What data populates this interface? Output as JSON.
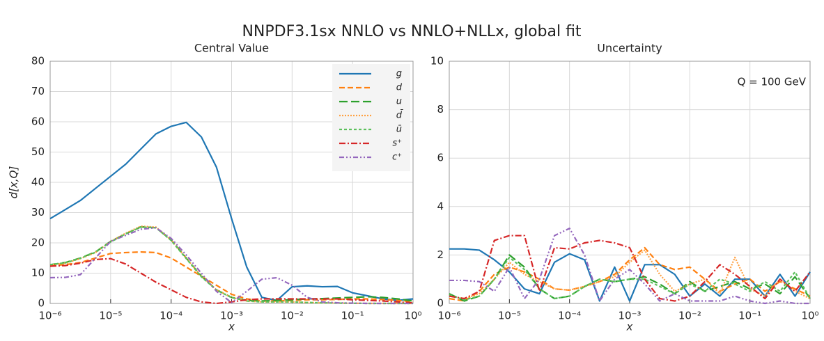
{
  "suptitle": "NNPDF3.1sx NNLO vs NNLO+NLLx, global fit",
  "chart_data": [
    {
      "type": "line",
      "title": "Central Value",
      "xlabel": "x",
      "ylabel": "d[x,Q]",
      "xscale": "log",
      "grid": true,
      "legend": "upper right",
      "x": [
        1e-06,
        1.78e-06,
        3.16e-06,
        5.62e-06,
        1e-05,
        1.78e-05,
        3.16e-05,
        5.62e-05,
        0.0001,
        0.000178,
        0.000316,
        0.000562,
        0.001,
        0.00178,
        0.00316,
        0.00562,
        0.01,
        0.0178,
        0.0316,
        0.0562,
        0.1,
        0.178,
        0.316,
        0.562,
        1
      ],
      "xlim": [
        1e-06,
        1
      ],
      "xticks": [
        {
          "value": 1e-06,
          "label": "10⁻⁶"
        },
        {
          "value": 1e-05,
          "label": "10⁻⁵"
        },
        {
          "value": 0.0001,
          "label": "10⁻⁴"
        },
        {
          "value": 0.001,
          "label": "10⁻³"
        },
        {
          "value": 0.01,
          "label": "10⁻²"
        },
        {
          "value": 0.1,
          "label": "10⁻¹"
        },
        {
          "value": 1,
          "label": "10⁰"
        }
      ],
      "ylim": [
        0,
        80
      ],
      "yticks": [
        0,
        10,
        20,
        30,
        40,
        50,
        60,
        70,
        80
      ],
      "series": [
        {
          "name": "g",
          "color": "#1f77b4",
          "linestyle": "solid",
          "values": [
            28,
            31,
            34,
            38,
            42,
            46,
            51,
            56,
            58.5,
            59.8,
            55,
            45,
            28,
            12,
            2,
            1,
            5.5,
            5.8,
            5.5,
            5.6,
            3.5,
            2.5,
            1.5,
            1,
            1.5
          ]
        },
        {
          "name": "d",
          "color": "#ff7f0e",
          "linestyle": "dashed",
          "values": [
            12.5,
            12.8,
            13.5,
            15,
            16.5,
            16.8,
            17,
            16.8,
            15,
            12,
            9,
            6,
            3,
            1.5,
            0.8,
            0.8,
            1,
            1.2,
            1.2,
            1.3,
            1.5,
            1.5,
            1.3,
            1,
            0.5
          ]
        },
        {
          "name": "u",
          "color": "#2ca02c",
          "linestyle": "longdash",
          "values": [
            12.8,
            13.5,
            15,
            17,
            20.5,
            23,
            25.3,
            25,
            21,
            15,
            9,
            4.5,
            2,
            1,
            0.8,
            1,
            1.2,
            1.5,
            1.6,
            1.8,
            2,
            2.2,
            2,
            1.5,
            0.8
          ]
        },
        {
          "name": "d̄",
          "color": "#ffa040",
          "linestyle": "dotted",
          "values": [
            12.7,
            13.3,
            14.8,
            16.8,
            20.5,
            23.2,
            25.5,
            25.2,
            21,
            15,
            9,
            4.5,
            2,
            0.8,
            0.5,
            0.5,
            0.5,
            0.3,
            0.2,
            0.1,
            0.05,
            0,
            0,
            0,
            0
          ]
        },
        {
          "name": "ū",
          "color": "#5cc05c",
          "linestyle": "shortdash",
          "values": [
            12.8,
            13.4,
            14.9,
            16.9,
            20.3,
            23,
            25.2,
            25,
            20.8,
            14.8,
            8.8,
            4.4,
            1.9,
            0.8,
            0.5,
            0.5,
            0.5,
            0.3,
            0.2,
            0.1,
            0.05,
            0,
            0,
            0,
            0
          ]
        },
        {
          "name": "s⁺",
          "color": "#d62728",
          "linestyle": "dashdot",
          "values": [
            12.3,
            12.5,
            13.3,
            14.5,
            14.8,
            13,
            10,
            7,
            4.5,
            2,
            0.5,
            0,
            0.5,
            1.2,
            1.5,
            1.5,
            1.5,
            1.5,
            1.5,
            1.5,
            1.2,
            1,
            0.8,
            0.5,
            0.2
          ]
        },
        {
          "name": "c⁺",
          "color": "#9467bd",
          "linestyle": "dashdotdot",
          "values": [
            8.5,
            8.6,
            9.5,
            15,
            20.5,
            22.5,
            24.5,
            25,
            21.5,
            16,
            10,
            4,
            0.3,
            4,
            8,
            8.5,
            6,
            2,
            0.5,
            0.2,
            0.1,
            0,
            0,
            0,
            0
          ]
        }
      ]
    },
    {
      "type": "line",
      "title": "Uncertainty",
      "xlabel": "x",
      "xscale": "log",
      "grid": true,
      "annotation": "Q = 100 GeV",
      "x": [
        1e-06,
        1.78e-06,
        3.16e-06,
        5.62e-06,
        1e-05,
        1.78e-05,
        3.16e-05,
        5.62e-05,
        0.0001,
        0.000178,
        0.000316,
        0.000562,
        0.001,
        0.00178,
        0.00316,
        0.00562,
        0.01,
        0.0178,
        0.0316,
        0.0562,
        0.1,
        0.178,
        0.316,
        0.562,
        1
      ],
      "xlim": [
        1e-06,
        1
      ],
      "xticks": [
        {
          "value": 1e-06,
          "label": "10⁻⁶"
        },
        {
          "value": 1e-05,
          "label": "10⁻⁵"
        },
        {
          "value": 0.0001,
          "label": "10⁻⁴"
        },
        {
          "value": 0.001,
          "label": "10⁻³"
        },
        {
          "value": 0.01,
          "label": "10⁻²"
        },
        {
          "value": 0.1,
          "label": "10⁻¹"
        },
        {
          "value": 1,
          "label": "10⁰"
        }
      ],
      "ylim": [
        0,
        10
      ],
      "yticks": [
        0,
        2,
        4,
        6,
        8,
        10
      ],
      "series": [
        {
          "name": "g",
          "color": "#1f77b4",
          "linestyle": "solid",
          "values": [
            2.25,
            2.25,
            2.2,
            1.8,
            1.3,
            0.6,
            0.4,
            1.7,
            2.05,
            1.8,
            0.1,
            1.5,
            0.1,
            1.6,
            1.6,
            1.2,
            0.3,
            0.8,
            0.3,
            1.0,
            1.0,
            0.3,
            1.2,
            0.3,
            1.3
          ]
        },
        {
          "name": "d",
          "color": "#ff7f0e",
          "linestyle": "dashed",
          "values": [
            0.2,
            0.1,
            0.5,
            1.2,
            1.5,
            1.3,
            1.0,
            0.6,
            0.55,
            0.7,
            0.9,
            1.2,
            1.8,
            2.3,
            1.6,
            1.4,
            1.5,
            1.0,
            0.5,
            0.8,
            1.0,
            0.5,
            0.9,
            0.6,
            0.3
          ]
        },
        {
          "name": "u",
          "color": "#2ca02c",
          "linestyle": "longdash",
          "values": [
            0.4,
            0.1,
            0.3,
            1.0,
            2.0,
            1.5,
            0.6,
            0.2,
            0.3,
            0.7,
            1.0,
            0.9,
            1.0,
            1.1,
            0.8,
            0.4,
            0.9,
            0.5,
            0.7,
            0.9,
            0.6,
            0.8,
            0.4,
            1.1,
            0.2
          ]
        },
        {
          "name": "d̄",
          "color": "#ffa040",
          "linestyle": "dotted",
          "values": [
            0.3,
            0.2,
            0.4,
            1.0,
            1.7,
            1.2,
            0.9,
            0.6,
            0.55,
            0.7,
            0.9,
            1.1,
            1.7,
            2.2,
            1.2,
            0.5,
            0.8,
            1.0,
            0.4,
            1.9,
            0.6,
            0.3,
            1.0,
            0.5,
            0.2
          ]
        },
        {
          "name": "ū",
          "color": "#5cc05c",
          "linestyle": "shortdash",
          "values": [
            0.35,
            0.15,
            0.3,
            1.0,
            1.9,
            1.4,
            0.6,
            0.2,
            0.3,
            0.7,
            1.0,
            0.9,
            1.0,
            1.0,
            0.7,
            0.4,
            0.8,
            0.5,
            1.0,
            0.8,
            0.5,
            0.9,
            0.5,
            1.3,
            0.2
          ]
        },
        {
          "name": "s⁺",
          "color": "#d62728",
          "linestyle": "dashdot",
          "values": [
            0.3,
            0.2,
            0.5,
            2.6,
            2.8,
            2.8,
            0.5,
            2.3,
            2.25,
            2.5,
            2.6,
            2.5,
            2.3,
            1.0,
            0.2,
            0.1,
            0.3,
            0.9,
            1.6,
            1.2,
            0.7,
            0.2,
            1.0,
            0.5,
            1.3
          ]
        },
        {
          "name": "c⁺",
          "color": "#9467bd",
          "linestyle": "dashdotdot",
          "values": [
            0.95,
            0.95,
            0.9,
            0.5,
            1.5,
            0.2,
            1.0,
            2.8,
            3.1,
            2.0,
            0.1,
            1.0,
            1.4,
            0.8,
            0.1,
            0.4,
            0.1,
            0.1,
            0.1,
            0.3,
            0.1,
            0,
            0.1,
            0,
            0
          ]
        }
      ]
    }
  ]
}
